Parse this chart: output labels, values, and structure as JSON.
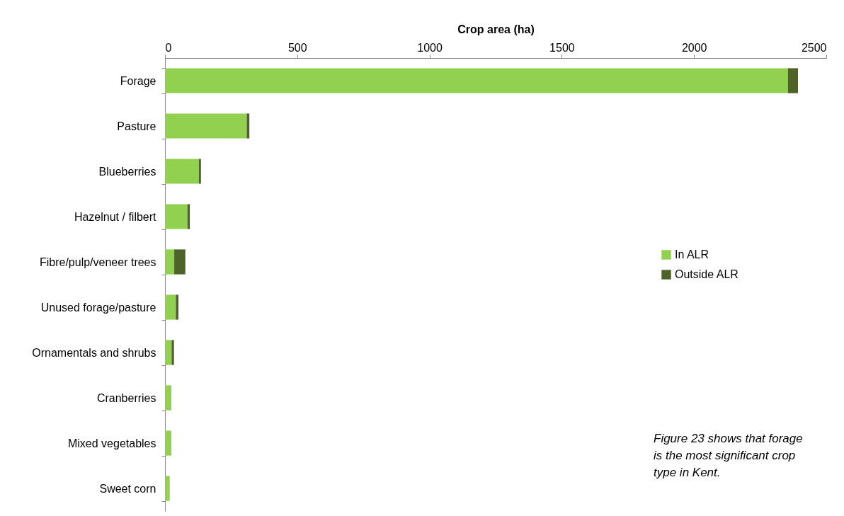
{
  "chart_data": {
    "type": "bar",
    "orientation": "horizontal",
    "stacked": true,
    "xlabel": "Crop area (ha)",
    "categories": [
      "Forage",
      "Pasture",
      "Blueberries",
      "Hazelnut / filbert",
      "Fibre/pulp/veneer trees",
      "Unused forage/pasture",
      "Ornamentals and shrubs",
      "Cranberries",
      "Mixed vegetables",
      "Sweet corn"
    ],
    "series": [
      {
        "name": "In ALR",
        "color": "#92d050",
        "values": [
          2355,
          309,
          128,
          85,
          35,
          41,
          25,
          24,
          24,
          18
        ]
      },
      {
        "name": "Outside ALR",
        "color": "#4f6228",
        "values": [
          38,
          10,
          8,
          9,
          42,
          10,
          9,
          null,
          null,
          null
        ]
      }
    ],
    "xlim": [
      0,
      2500
    ],
    "xticks": [
      0,
      500,
      1000,
      1500,
      2000,
      2500
    ],
    "grid": false,
    "legend": "right",
    "annotations": [
      "Figure 23 shows that forage is the most significant crop type in Kent."
    ]
  }
}
